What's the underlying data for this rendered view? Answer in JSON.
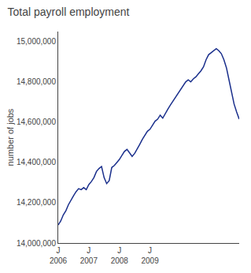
{
  "chart_data": {
    "type": "line",
    "title": "Total payroll employment",
    "ylabel": "number of jobs",
    "color": "#1a2f8c",
    "grid": false,
    "categories": [
      "J",
      null,
      null,
      null,
      null,
      null,
      null,
      null,
      null,
      null,
      null,
      null,
      "J",
      null,
      null,
      null,
      null,
      null,
      null,
      null,
      null,
      null,
      null,
      null,
      "J",
      null,
      null,
      null,
      null,
      null,
      null,
      null,
      null,
      null,
      null,
      null,
      "J",
      null,
      null,
      null,
      null,
      null,
      null,
      null,
      null,
      null,
      null,
      null,
      null,
      null,
      null,
      null,
      null,
      null,
      null,
      null,
      null,
      null,
      null,
      null,
      null,
      null,
      null,
      null,
      null,
      null,
      null,
      null,
      null,
      null,
      null,
      null
    ],
    "annotations": [
      "2006",
      "2007",
      "2008",
      "2009"
    ],
    "values": [
      14090000,
      14110000,
      14140000,
      14160000,
      14190000,
      14215000,
      14235000,
      14255000,
      14270000,
      14265000,
      14275000,
      14265000,
      14290000,
      14305000,
      14325000,
      14355000,
      14370000,
      14380000,
      14325000,
      14295000,
      14310000,
      14375000,
      14385000,
      14400000,
      14415000,
      14435000,
      14455000,
      14465000,
      14445000,
      14430000,
      14445000,
      14465000,
      14490000,
      14515000,
      14535000,
      14555000,
      14565000,
      14585000,
      14605000,
      14615000,
      14635000,
      14620000,
      14645000,
      14665000,
      14685000,
      14705000,
      14725000,
      14745000,
      14765000,
      14785000,
      14800000,
      14810000,
      14800000,
      14815000,
      14825000,
      14840000,
      14855000,
      14875000,
      14910000,
      14935000,
      14945000,
      14955000,
      14965000,
      14955000,
      14940000,
      14910000,
      14870000,
      14810000,
      14745000,
      14690000,
      14650000,
      14615000
    ],
    "ylim": [
      14000000,
      15050000
    ],
    "yticks": [
      {
        "value": 14000000,
        "label": "14,000,000"
      },
      {
        "value": 14200000,
        "label": "14,200,000"
      },
      {
        "value": 14400000,
        "label": "14,400,000"
      },
      {
        "value": 14600000,
        "label": "14,600,000"
      },
      {
        "value": 14800000,
        "label": "14,800,000"
      },
      {
        "value": 15000000,
        "label": "15,000,000"
      }
    ]
  }
}
